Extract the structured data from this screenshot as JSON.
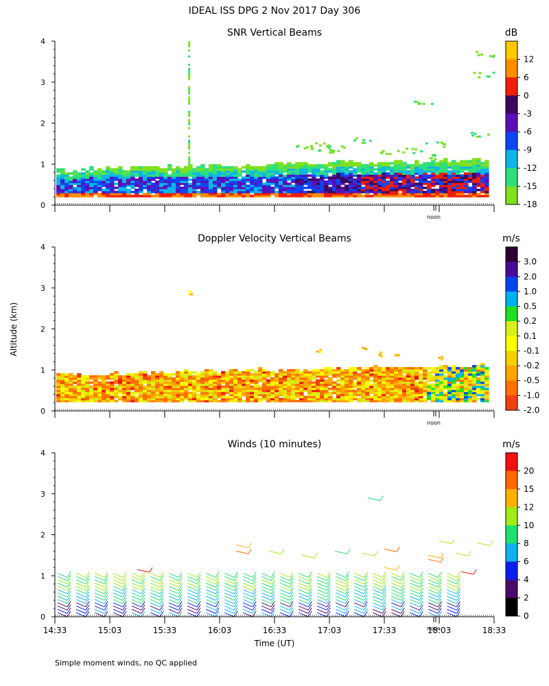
{
  "main_title": "IDEAL ISS DPG    2 Nov 2017 Day 306",
  "y_axis_label": "Altitude (km)",
  "x_axis_label": "Time (UT)",
  "footnote": "Simple moment winds, no QC applied",
  "noon_label": "noon",
  "colors": {
    "snr_scale": [
      "#7fe01e",
      "#2fe07a",
      "#0fb5e6",
      "#0c45f5",
      "#5b0eb8",
      "#3a0a5e",
      "#f01d08",
      "#ff8c00",
      "#ffc800"
    ],
    "vel_scale": [
      "#f01010",
      "#f04010",
      "#ff7000",
      "#ffa500",
      "#f5d000",
      "#ffff00",
      "#d8f018",
      "#20e020",
      "#00b0f0",
      "#0044f0",
      "#4a0a9a",
      "#2a0030"
    ],
    "wind_scale": [
      "#000000",
      "#4a0a6a",
      "#0a1ef0",
      "#10b0f0",
      "#20e070",
      "#a0ec18",
      "#ffb000",
      "#ff6800",
      "#f01010"
    ]
  },
  "chart_data": [
    {
      "type": "heatmap",
      "title": "SNR Vertical Beams",
      "xlabel": "Time (UT)",
      "ylabel": "Altitude (km)",
      "ylim": [
        0,
        4
      ],
      "xlim_hours": [
        14.55,
        18.55
      ],
      "y_ticks": [
        "0",
        "1",
        "2",
        "3",
        "4"
      ],
      "colorbar_unit": "dB",
      "colorbar_ticks": [
        "12",
        "6",
        "0",
        "-3",
        "-6",
        "-9",
        "-12",
        "-15",
        "-18"
      ],
      "features": [
        {
          "desc": "stratified echo layer",
          "top_km": 0.9,
          "bottom_km": 0.2
        },
        {
          "desc": "vertical streak",
          "time": "15:46",
          "top_km": 4.0
        },
        {
          "desc": "sparse high-altitude echoes",
          "time_range": [
            "16:45",
            "18:05"
          ],
          "alt_range_km": [
            1.2,
            2.6
          ]
        }
      ]
    },
    {
      "type": "heatmap",
      "title": "Doppler Velocity Vertical Beams",
      "xlabel": "Time (UT)",
      "ylabel": "Altitude (km)",
      "ylim": [
        0,
        4
      ],
      "y_ticks": [
        "0",
        "1",
        "2",
        "3",
        "4"
      ],
      "colorbar_unit": "m/s",
      "colorbar_ticks": [
        "3.0",
        "2.0",
        "1.0",
        "0.5",
        "0.2",
        "0.1",
        "-0.1",
        "-0.2",
        "-0.5",
        "-1.0",
        "-2.0"
      ]
    },
    {
      "type": "wind_barbs",
      "title": "Winds (10 minutes)",
      "xlabel": "Time (UT)",
      "ylabel": "Altitude (km)",
      "ylim": [
        0,
        4
      ],
      "y_ticks": [
        "0",
        "1",
        "2",
        "3",
        "4"
      ],
      "x_ticks": [
        "14:33",
        "15:03",
        "15:33",
        "16:03",
        "16:33",
        "17:03",
        "17:33",
        "18:03",
        "18:33"
      ],
      "colorbar_unit": "m/s",
      "colorbar_ticks": [
        "20",
        "15",
        "12",
        "10",
        "8",
        "6",
        "4",
        "2",
        "0"
      ],
      "profile_count": 22
    }
  ]
}
